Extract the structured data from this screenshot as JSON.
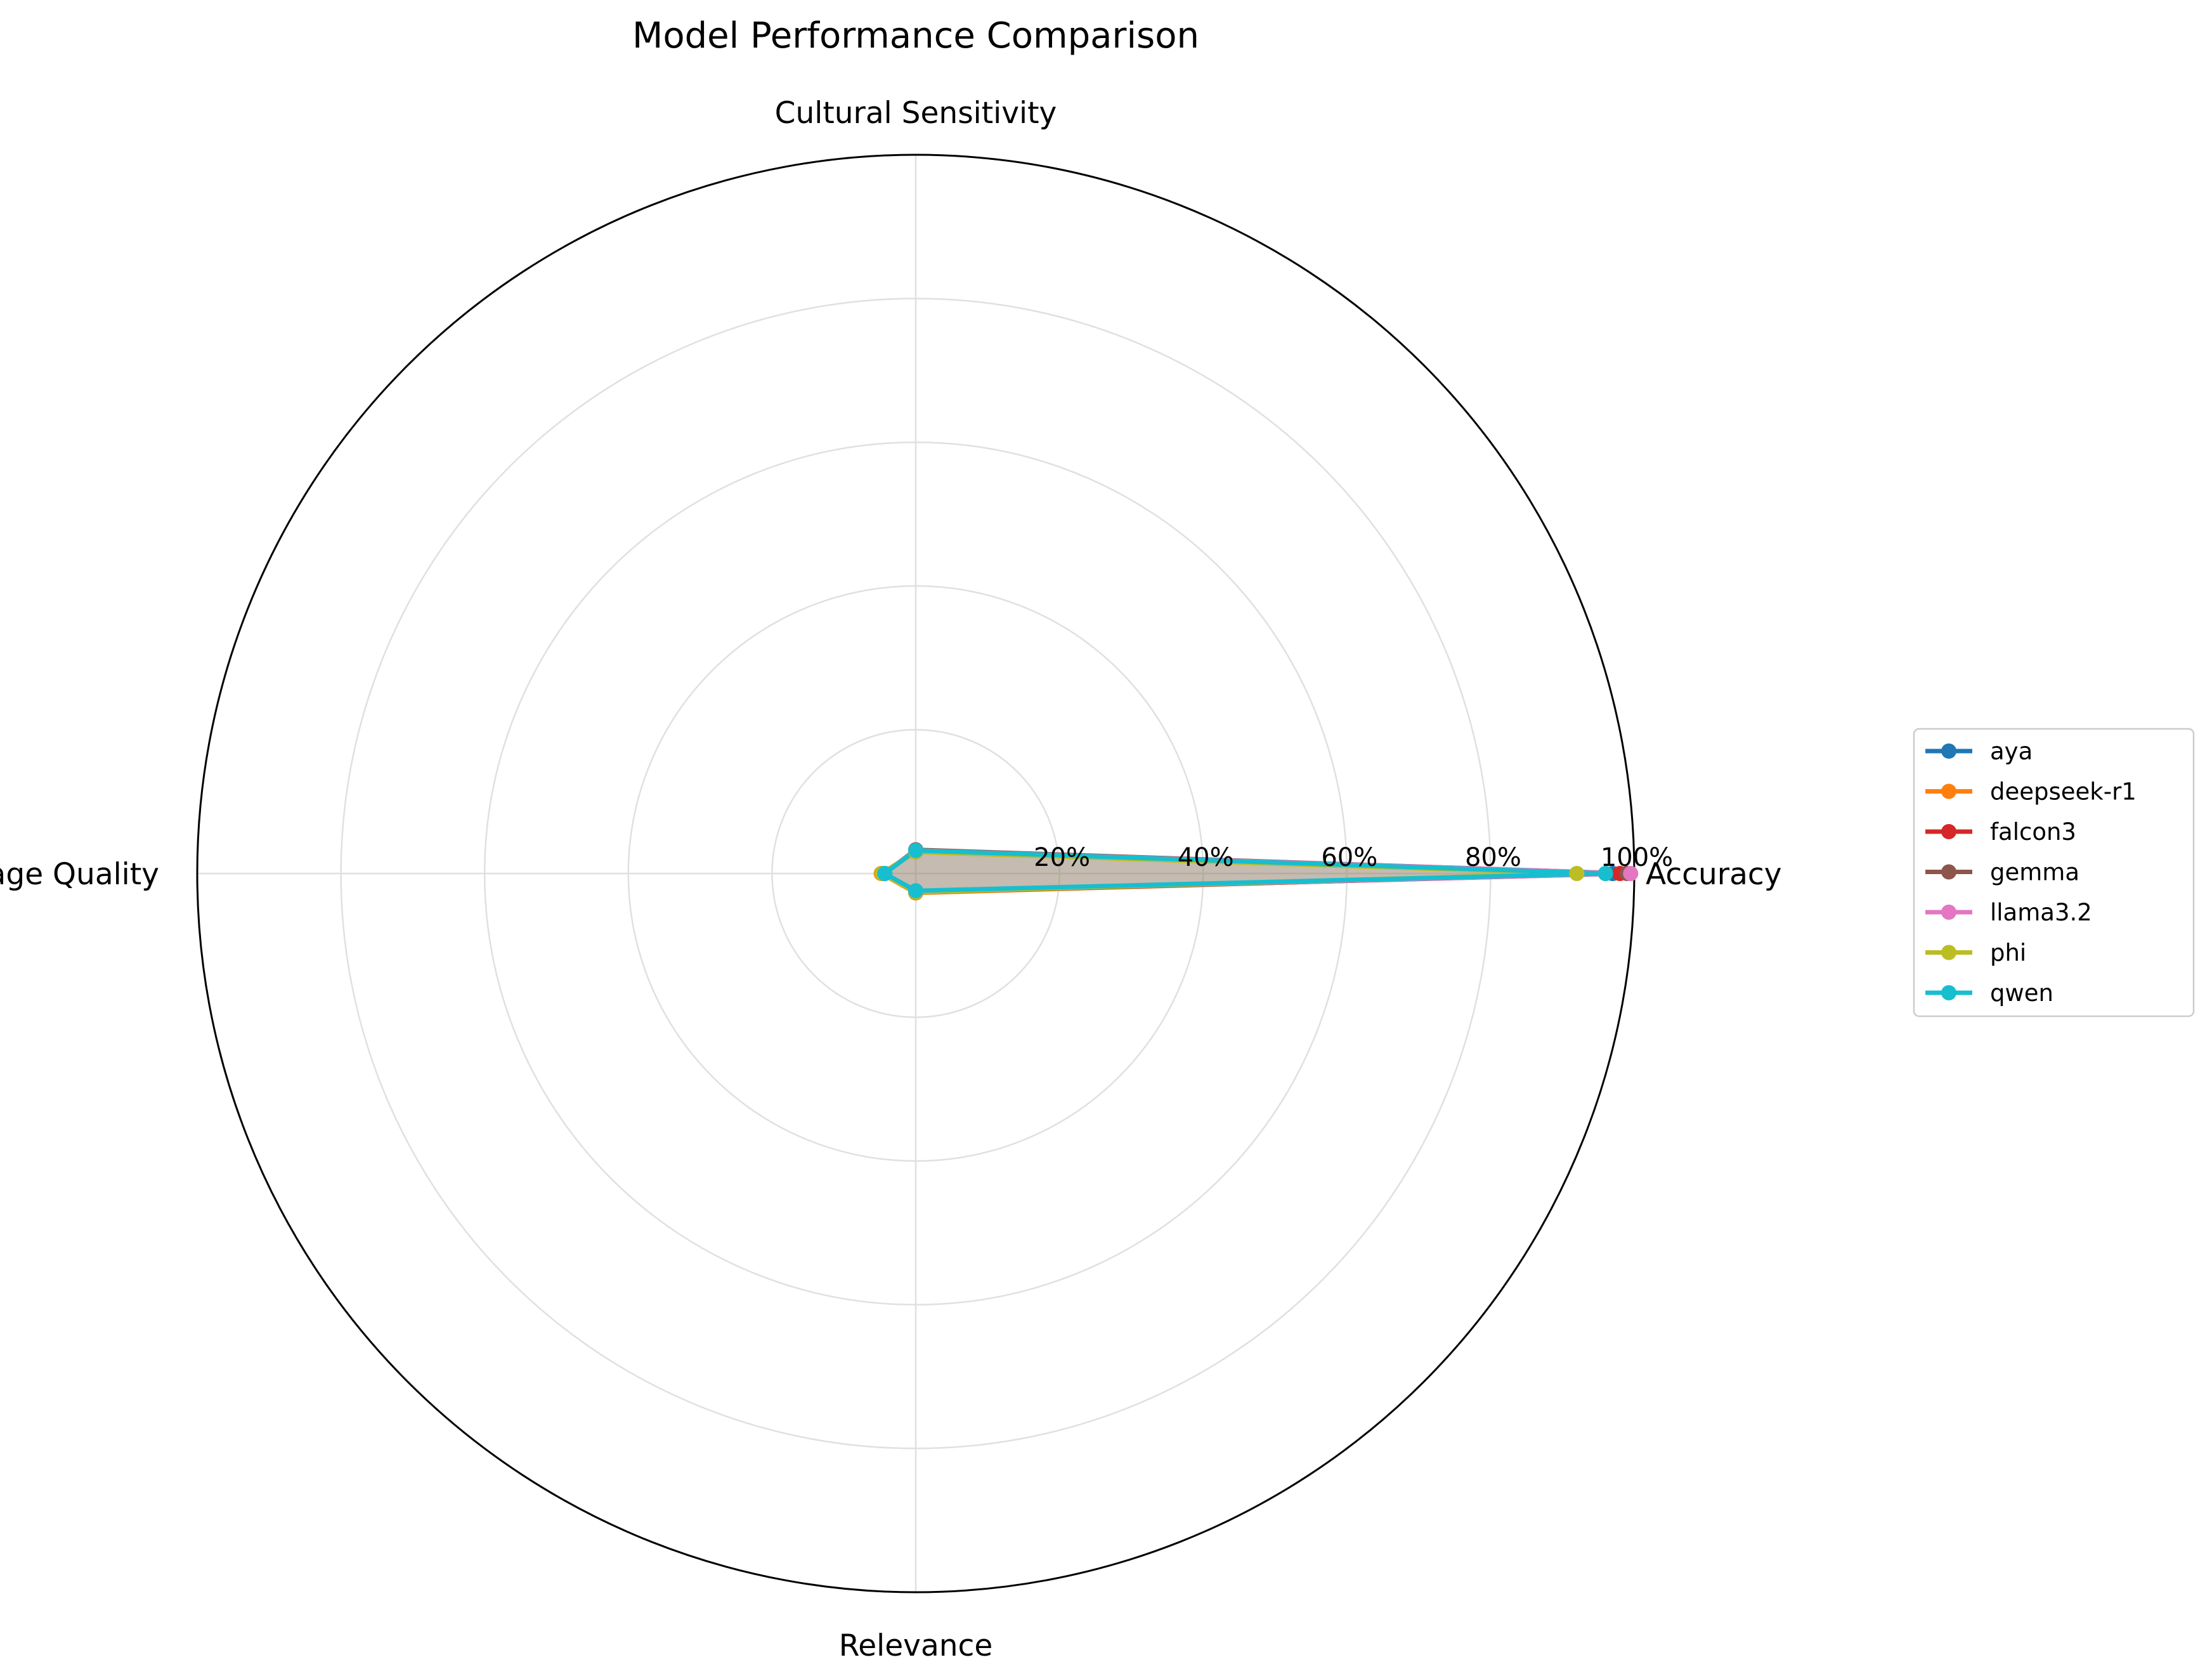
{
  "chart_data": {
    "type": "radar",
    "title": "Model Performance Comparison",
    "axes": [
      "Accuracy",
      "Cultural Sensitivity",
      "Language Quality",
      "Relevance"
    ],
    "radial_ticks": [
      "20%",
      "40%",
      "60%",
      "80%",
      "100%"
    ],
    "radial_tick_values": [
      20,
      40,
      60,
      80,
      100
    ],
    "rlim": [
      0,
      100
    ],
    "grid": true,
    "legend_position": "right",
    "series": [
      {
        "name": "aya",
        "color": "#1f77b4",
        "values": [
          97,
          3.2,
          4.5,
          2.5
        ]
      },
      {
        "name": "deepseek-r1",
        "color": "#ff7f0e",
        "values": [
          96,
          3.0,
          4.8,
          2.7
        ]
      },
      {
        "name": "falcon3",
        "color": "#d62728",
        "values": [
          98,
          3.1,
          4.6,
          2.6
        ]
      },
      {
        "name": "gemma",
        "color": "#8c564b",
        "values": [
          99,
          3.3,
          4.4,
          2.6
        ]
      },
      {
        "name": "llama3.2",
        "color": "#e377c2",
        "values": [
          99.5,
          3.2,
          4.5,
          2.5
        ]
      },
      {
        "name": "phi",
        "color": "#bcbd22",
        "values": [
          92,
          3.0,
          4.7,
          2.6
        ]
      },
      {
        "name": "qwen",
        "color": "#17becf",
        "values": [
          96,
          3.2,
          4.3,
          2.4
        ]
      }
    ]
  }
}
